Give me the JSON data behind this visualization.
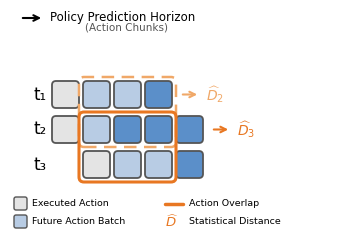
{
  "title": "Policy Prediction Horizon",
  "subtitle": "(Action Chunks)",
  "row_labels": [
    "t₁",
    "t₂",
    "t₃"
  ],
  "color_executed": "#e4e4e4",
  "color_future_light": "#b8cce4",
  "color_future_dark": "#5b8fc9",
  "color_border": "#555555",
  "color_orange": "#e87722",
  "color_orange_dashed": "#f0a868",
  "bg_color": "#ffffff"
}
